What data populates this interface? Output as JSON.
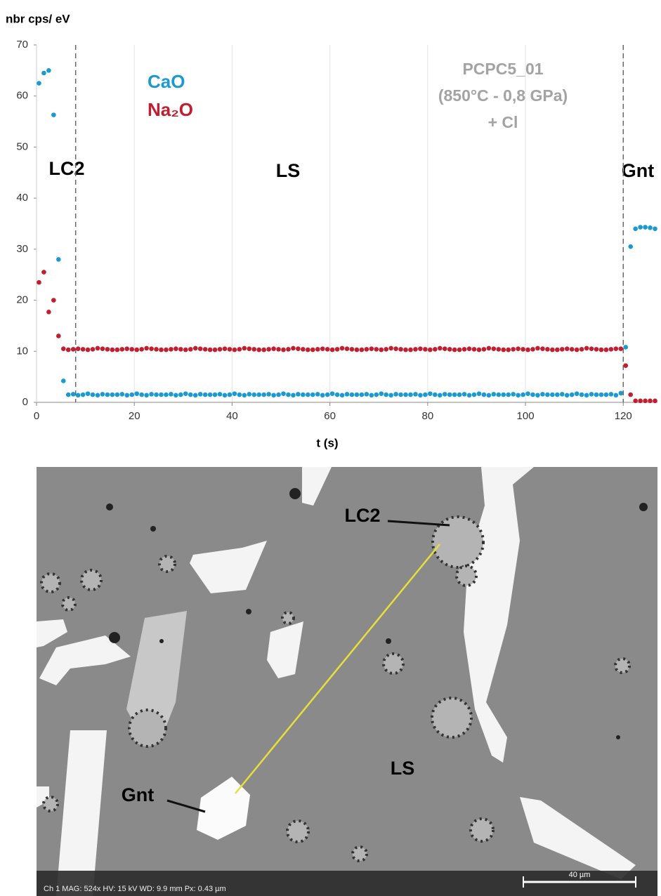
{
  "chart_data": {
    "type": "scatter",
    "y_label": "nbr cps/ eV",
    "x_label": "t (s)",
    "annotations": [
      "LC2",
      "LS",
      "Gnt"
    ],
    "sample_text": [
      "PCPC5_01",
      "(850°C - 0,8 GPa)",
      "+ Cl"
    ],
    "boundaries": [
      8,
      120
    ],
    "xlim": [
      0,
      127
    ],
    "ylim": [
      0,
      70
    ],
    "xticks": [
      0,
      20,
      40,
      60,
      80,
      100,
      120
    ],
    "yticks": [
      0,
      10,
      20,
      30,
      40,
      50,
      60,
      70
    ],
    "grid": "x",
    "x": [
      0.5,
      1.5,
      2.5,
      3.5,
      4.5,
      5.5,
      6.5,
      7.5,
      8.5,
      9.5,
      10.5,
      11.5,
      12.5,
      13.5,
      14.5,
      15.5,
      16.5,
      17.5,
      18.5,
      19.5,
      20.5,
      21.5,
      22.5,
      23.5,
      24.5,
      25.5,
      26.5,
      27.5,
      28.5,
      29.5,
      30.5,
      31.5,
      32.5,
      33.5,
      34.5,
      35.5,
      36.5,
      37.5,
      38.5,
      39.5,
      40.5,
      41.5,
      42.5,
      43.5,
      44.5,
      45.5,
      46.5,
      47.5,
      48.5,
      49.5,
      50.5,
      51.5,
      52.5,
      53.5,
      54.5,
      55.5,
      56.5,
      57.5,
      58.5,
      59.5,
      60.5,
      61.5,
      62.5,
      63.5,
      64.5,
      65.5,
      66.5,
      67.5,
      68.5,
      69.5,
      70.5,
      71.5,
      72.5,
      73.5,
      74.5,
      75.5,
      76.5,
      77.5,
      78.5,
      79.5,
      80.5,
      81.5,
      82.5,
      83.5,
      84.5,
      85.5,
      86.5,
      87.5,
      88.5,
      89.5,
      90.5,
      91.5,
      92.5,
      93.5,
      94.5,
      95.5,
      96.5,
      97.5,
      98.5,
      99.5,
      100.5,
      101.5,
      102.5,
      103.5,
      104.5,
      105.5,
      106.5,
      107.5,
      108.5,
      109.5,
      110.5,
      111.5,
      112.5,
      113.5,
      114.5,
      115.5,
      116.5,
      117.5,
      118.5,
      119.5,
      120.5,
      121.5,
      122.5,
      123.5,
      124.5,
      125.5,
      126.5
    ],
    "series": [
      {
        "name": "CaO",
        "color": "#1b9ad2",
        "values": [
          62.5,
          64.5,
          65,
          56.3,
          28,
          4.2,
          1.5,
          1.6,
          1.4,
          1.5,
          1.7,
          1.5,
          1.4,
          1.6,
          1.5,
          1.5,
          1.5,
          1.6,
          1.4,
          1.5,
          1.7,
          1.5,
          1.4,
          1.6,
          1.5,
          1.5,
          1.5,
          1.6,
          1.4,
          1.5,
          1.7,
          1.5,
          1.4,
          1.6,
          1.5,
          1.5,
          1.5,
          1.6,
          1.4,
          1.5,
          1.7,
          1.5,
          1.4,
          1.6,
          1.5,
          1.5,
          1.5,
          1.6,
          1.4,
          1.5,
          1.7,
          1.5,
          1.4,
          1.6,
          1.5,
          1.5,
          1.5,
          1.6,
          1.4,
          1.5,
          1.7,
          1.5,
          1.4,
          1.6,
          1.5,
          1.5,
          1.5,
          1.6,
          1.4,
          1.5,
          1.7,
          1.5,
          1.4,
          1.6,
          1.5,
          1.5,
          1.5,
          1.6,
          1.4,
          1.5,
          1.7,
          1.5,
          1.4,
          1.6,
          1.5,
          1.5,
          1.5,
          1.6,
          1.4,
          1.5,
          1.7,
          1.5,
          1.4,
          1.6,
          1.5,
          1.5,
          1.5,
          1.6,
          1.4,
          1.5,
          1.7,
          1.5,
          1.4,
          1.6,
          1.5,
          1.5,
          1.5,
          1.6,
          1.4,
          1.5,
          1.7,
          1.5,
          1.4,
          1.6,
          1.5,
          1.5,
          1.5,
          1.6,
          1.4,
          1.8,
          10.8,
          30.5,
          34,
          34.3,
          34.3,
          34.2,
          34
        ]
      },
      {
        "name": "Na₂O",
        "color": "#c11f30",
        "values": [
          23.5,
          25.5,
          17.7,
          20,
          13,
          10.5,
          10.3,
          10.4,
          10.5,
          10.4,
          10.3,
          10.4,
          10.6,
          10.5,
          10.4,
          10.3,
          10.3,
          10.4,
          10.5,
          10.4,
          10.3,
          10.4,
          10.6,
          10.5,
          10.4,
          10.3,
          10.3,
          10.4,
          10.5,
          10.4,
          10.3,
          10.4,
          10.6,
          10.5,
          10.4,
          10.3,
          10.3,
          10.4,
          10.5,
          10.4,
          10.3,
          10.4,
          10.6,
          10.5,
          10.4,
          10.3,
          10.3,
          10.4,
          10.5,
          10.4,
          10.3,
          10.4,
          10.6,
          10.5,
          10.4,
          10.3,
          10.3,
          10.4,
          10.5,
          10.4,
          10.3,
          10.4,
          10.6,
          10.5,
          10.4,
          10.3,
          10.3,
          10.4,
          10.5,
          10.4,
          10.3,
          10.4,
          10.6,
          10.5,
          10.4,
          10.3,
          10.3,
          10.4,
          10.5,
          10.4,
          10.3,
          10.4,
          10.6,
          10.5,
          10.4,
          10.3,
          10.3,
          10.4,
          10.5,
          10.4,
          10.3,
          10.4,
          10.6,
          10.5,
          10.4,
          10.3,
          10.3,
          10.4,
          10.5,
          10.4,
          10.3,
          10.4,
          10.6,
          10.5,
          10.4,
          10.3,
          10.3,
          10.4,
          10.5,
          10.4,
          10.3,
          10.4,
          10.6,
          10.5,
          10.4,
          10.3,
          10.3,
          10.4,
          10.5,
          10.5,
          7.2,
          1.5,
          0.3,
          0.3,
          0.3,
          0.3,
          0.3
        ]
      }
    ]
  },
  "image": {
    "labels": [
      "LC2",
      "Gnt",
      "LS"
    ],
    "scale_bar": "40 µm",
    "info": "Ch 1   MAG: 524x   HV: 15 kV   WD: 9.9 mm   Px: 0.43 µm"
  }
}
